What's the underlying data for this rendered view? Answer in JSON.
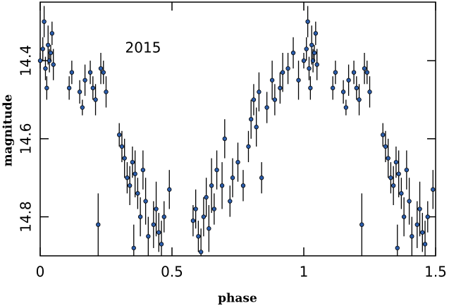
{
  "chart_data": {
    "type": "scatter",
    "xlabel": "phase",
    "ylabel": "magnitude",
    "annotation": "2015",
    "xlim": [
      0,
      1.5
    ],
    "ylim": [
      14.25,
      14.9
    ],
    "xticks": [
      0,
      0.5,
      1,
      1.5
    ],
    "yticks": [
      14.4,
      14.6,
      14.8
    ],
    "color": "#2a5caa",
    "x": [
      0.0,
      0.01,
      0.015,
      0.02,
      0.025,
      0.03,
      0.035,
      0.04,
      0.045,
      0.05,
      0.11,
      0.12,
      0.15,
      0.16,
      0.17,
      0.19,
      0.2,
      0.21,
      0.22,
      0.23,
      0.24,
      0.25,
      0.3,
      0.31,
      0.32,
      0.33,
      0.34,
      0.35,
      0.355,
      0.36,
      0.37,
      0.38,
      0.39,
      0.4,
      0.41,
      0.43,
      0.44,
      0.45,
      0.46,
      0.47,
      0.49,
      0.58,
      0.59,
      0.6,
      0.61,
      0.62,
      0.63,
      0.64,
      0.65,
      0.66,
      0.67,
      0.69,
      0.7,
      0.72,
      0.73,
      0.75,
      0.77,
      0.79,
      0.8,
      0.81,
      0.82,
      0.83,
      0.84,
      0.86,
      0.88,
      0.89,
      0.91,
      0.92,
      0.94,
      0.96,
      0.98,
      1.0,
      1.01,
      1.015,
      1.02,
      1.025,
      1.03,
      1.035,
      1.04,
      1.045,
      1.05,
      1.11,
      1.12,
      1.15,
      1.16,
      1.17,
      1.19,
      1.2,
      1.21,
      1.22,
      1.23,
      1.24,
      1.25,
      1.3,
      1.31,
      1.32,
      1.33,
      1.34,
      1.35,
      1.355,
      1.36,
      1.37,
      1.38,
      1.39,
      1.4,
      1.41,
      1.43,
      1.44,
      1.45,
      1.46,
      1.47,
      1.49
    ],
    "y": [
      14.4,
      14.37,
      14.3,
      14.42,
      14.47,
      14.36,
      14.4,
      14.38,
      14.33,
      14.41,
      14.47,
      14.43,
      14.48,
      14.52,
      14.45,
      14.43,
      14.47,
      14.5,
      14.82,
      14.42,
      14.43,
      14.48,
      14.59,
      14.62,
      14.65,
      14.7,
      14.72,
      14.66,
      14.88,
      14.69,
      14.74,
      14.8,
      14.68,
      14.76,
      14.85,
      14.82,
      14.78,
      14.84,
      14.87,
      14.8,
      14.73,
      14.81,
      14.78,
      14.85,
      14.89,
      14.8,
      14.75,
      14.83,
      14.72,
      14.78,
      14.68,
      14.72,
      14.6,
      14.76,
      14.7,
      14.66,
      14.72,
      14.62,
      14.55,
      14.5,
      14.57,
      14.48,
      14.7,
      14.52,
      14.45,
      14.5,
      14.47,
      14.43,
      14.42,
      14.38,
      14.45,
      14.4,
      14.37,
      14.3,
      14.42,
      14.47,
      14.36,
      14.4,
      14.38,
      14.33,
      14.41,
      14.47,
      14.43,
      14.48,
      14.52,
      14.45,
      14.43,
      14.47,
      14.5,
      14.82,
      14.42,
      14.43,
      14.48,
      14.59,
      14.62,
      14.65,
      14.7,
      14.72,
      14.66,
      14.88,
      14.69,
      14.74,
      14.8,
      14.68,
      14.76,
      14.85,
      14.82,
      14.78,
      14.84,
      14.87,
      14.8,
      14.73
    ],
    "err": [
      0.02,
      0.03,
      0.04,
      0.03,
      0.03,
      0.05,
      0.03,
      0.02,
      0.03,
      0.04,
      0.03,
      0.03,
      0.03,
      0.02,
      0.04,
      0.03,
      0.03,
      0.04,
      0.08,
      0.04,
      0.03,
      0.04,
      0.03,
      0.04,
      0.05,
      0.04,
      0.05,
      0.04,
      0.06,
      0.06,
      0.04,
      0.05,
      0.05,
      0.06,
      0.05,
      0.06,
      0.07,
      0.05,
      0.06,
      0.04,
      0.05,
      0.04,
      0.05,
      0.04,
      0.06,
      0.05,
      0.05,
      0.06,
      0.07,
      0.04,
      0.05,
      0.06,
      0.05,
      0.04,
      0.05,
      0.05,
      0.04,
      0.04,
      0.05,
      0.04,
      0.05,
      0.05,
      0.04,
      0.04,
      0.05,
      0.04,
      0.04,
      0.05,
      0.04,
      0.04,
      0.05,
      0.02,
      0.03,
      0.04,
      0.03,
      0.03,
      0.05,
      0.03,
      0.02,
      0.03,
      0.04,
      0.03,
      0.03,
      0.03,
      0.02,
      0.04,
      0.03,
      0.03,
      0.04,
      0.08,
      0.04,
      0.03,
      0.04,
      0.03,
      0.04,
      0.05,
      0.04,
      0.05,
      0.04,
      0.06,
      0.06,
      0.04,
      0.05,
      0.05,
      0.06,
      0.05,
      0.06,
      0.07,
      0.05,
      0.06,
      0.04,
      0.05
    ]
  }
}
